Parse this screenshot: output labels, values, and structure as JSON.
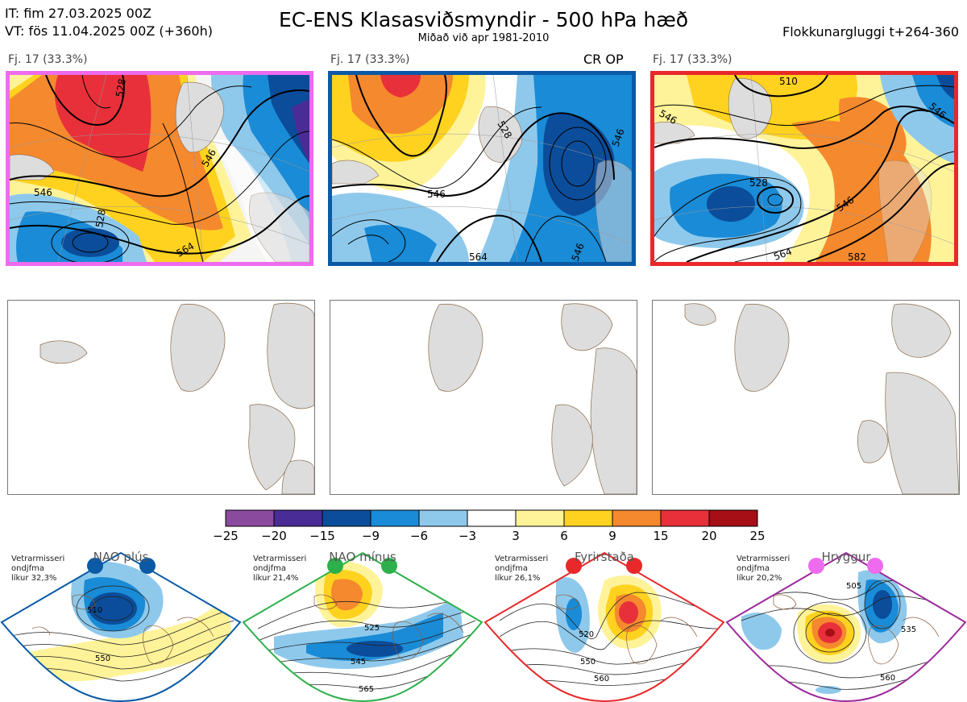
{
  "header": {
    "it": "IT: fim 27.03.2025 00Z",
    "vt": "VT: fös 11.04.2025 00Z  (+360h)",
    "title": "EC-ENS Klasasviðsmyndir - 500 hPa hæð",
    "subtitle": "Miðað við apr 1981-2010",
    "window": "Flokkunargluggi t+264-360"
  },
  "panels": [
    {
      "label": "Fj. 17 (33.3%)",
      "border_color": "#ee6bee",
      "contour_labels": [
        "546",
        "528",
        "546",
        "528",
        "564"
      ]
    },
    {
      "label": "Fj. 17 (33.3%)",
      "border_color": "#0a5aa6",
      "tag": "CR OP",
      "contour_labels": [
        "528",
        "546",
        "546",
        "564",
        "546"
      ]
    },
    {
      "label": "Fj. 17 (33.3%)",
      "border_color": "#e8282a",
      "contour_labels": [
        "510",
        "546",
        "528",
        "546",
        "564",
        "582"
      ]
    }
  ],
  "colorbar": {
    "ticks": [
      "−25",
      "−20",
      "−15",
      "−9",
      "−6",
      "−3",
      "3",
      "6",
      "9",
      "15",
      "20",
      "25"
    ],
    "colors": [
      "#8a4a9e",
      "#4a2c96",
      "#0b4d9a",
      "#1a8bd6",
      "#8ec9ec",
      "#ffffff",
      "#fff39a",
      "#ffd21f",
      "#f5892e",
      "#e8303a",
      "#a50f15"
    ]
  },
  "regimes": [
    {
      "name": "NAO plús",
      "season": "Vetrarmisseri",
      "kind": "ondjfma",
      "prob": "líkur 32,3%",
      "color": "#0a5aa6",
      "isolines": [
        "510",
        "550"
      ]
    },
    {
      "name": "NAO mínus",
      "season": "Vetrarmisseri",
      "kind": "ondjfma",
      "prob": "líkur 21,4%",
      "color": "#2db04b",
      "isolines": [
        "525",
        "545",
        "565"
      ]
    },
    {
      "name": "Fyrirstaða",
      "season": "Vetrarmisseri",
      "kind": "ondjfma",
      "prob": "líkur 26,1%",
      "color": "#e8282a",
      "isolines": [
        "520",
        "550",
        "560"
      ]
    },
    {
      "name": "Hryggur",
      "season": "Vetrarmisseri",
      "kind": "ondjfma",
      "prob": "líkur 20,2%",
      "color": "#9c2a9c",
      "dot_color": "#ee6bee",
      "isolines": [
        "505",
        "535",
        "560"
      ]
    }
  ]
}
